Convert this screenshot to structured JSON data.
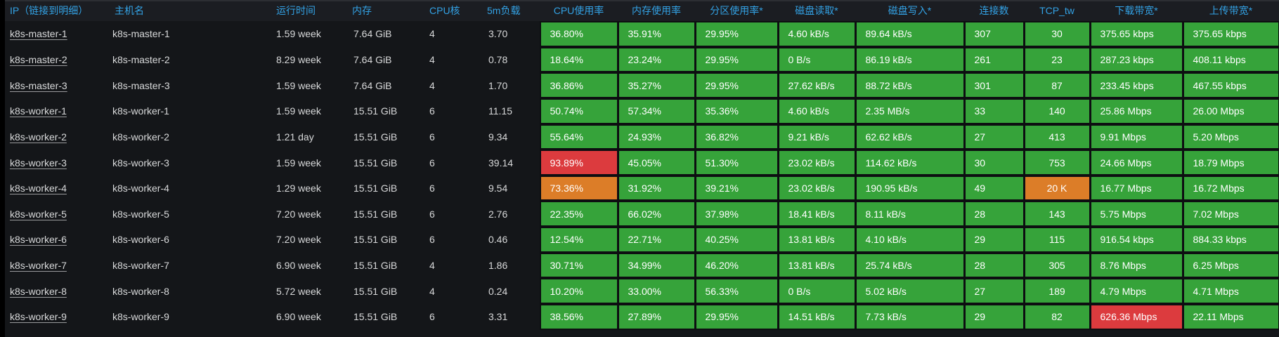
{
  "colors": {
    "green": "#36a33a",
    "orange": "#dc7d28",
    "red": "#dc3b3e",
    "header_text": "#33a2e5",
    "body_text": "#d8d9da",
    "cell_text": "#ffffff"
  },
  "table": {
    "columns": [
      {
        "key": "ip",
        "label": "IP（链接到明细）",
        "type": "link"
      },
      {
        "key": "hostname",
        "label": "主机名"
      },
      {
        "key": "uptime",
        "label": "运行时间"
      },
      {
        "key": "memory",
        "label": "内存"
      },
      {
        "key": "cpu_cores",
        "label": "CPU核"
      },
      {
        "key": "load5m",
        "label": "5m负载"
      },
      {
        "key": "cpu_usage",
        "label": "CPU使用率",
        "colored": true
      },
      {
        "key": "mem_usage",
        "label": "内存使用率",
        "colored": true
      },
      {
        "key": "part_usage",
        "label": "分区使用率*",
        "colored": true
      },
      {
        "key": "disk_read",
        "label": "磁盘读取*",
        "colored": true
      },
      {
        "key": "disk_write",
        "label": "磁盘写入*",
        "colored": true
      },
      {
        "key": "connections",
        "label": "连接数",
        "colored": true
      },
      {
        "key": "tcp_tw",
        "label": "TCP_tw",
        "colored": true,
        "align": "center"
      },
      {
        "key": "download_bw",
        "label": "下载带宽*",
        "colored": true
      },
      {
        "key": "upload_bw",
        "label": "上传带宽*",
        "colored": true
      }
    ],
    "rows": [
      {
        "ip": "k8s-master-1",
        "hostname": "k8s-master-1",
        "uptime": "1.59 week",
        "memory": "7.64 GiB",
        "cpu_cores": "4",
        "load5m": "3.70",
        "cpu_usage": "36.80%",
        "mem_usage": "35.91%",
        "part_usage": "29.95%",
        "disk_read": "4.60 kB/s",
        "disk_write": "89.64 kB/s",
        "connections": "307",
        "tcp_tw": "30",
        "download_bw": "375.65 kbps",
        "upload_bw": "375.65 kbps",
        "cell_colors": {}
      },
      {
        "ip": "k8s-master-2",
        "hostname": "k8s-master-2",
        "uptime": "8.29 week",
        "memory": "7.64 GiB",
        "cpu_cores": "4",
        "load5m": "0.78",
        "cpu_usage": "18.64%",
        "mem_usage": "23.24%",
        "part_usage": "29.95%",
        "disk_read": "0 B/s",
        "disk_write": "86.19 kB/s",
        "connections": "261",
        "tcp_tw": "23",
        "download_bw": "287.23 kbps",
        "upload_bw": "408.11 kbps",
        "cell_colors": {}
      },
      {
        "ip": "k8s-master-3",
        "hostname": "k8s-master-3",
        "uptime": "1.59 week",
        "memory": "7.64 GiB",
        "cpu_cores": "4",
        "load5m": "1.70",
        "cpu_usage": "36.86%",
        "mem_usage": "35.27%",
        "part_usage": "29.95%",
        "disk_read": "27.62 kB/s",
        "disk_write": "88.72 kB/s",
        "connections": "301",
        "tcp_tw": "87",
        "download_bw": "233.45 kbps",
        "upload_bw": "467.55 kbps",
        "cell_colors": {}
      },
      {
        "ip": "k8s-worker-1",
        "hostname": "k8s-worker-1",
        "uptime": "1.59 week",
        "memory": "15.51 GiB",
        "cpu_cores": "6",
        "load5m": "11.15",
        "cpu_usage": "50.74%",
        "mem_usage": "57.34%",
        "part_usage": "35.36%",
        "disk_read": "4.60 kB/s",
        "disk_write": "2.35 MB/s",
        "connections": "33",
        "tcp_tw": "140",
        "download_bw": "25.86 Mbps",
        "upload_bw": "26.00 Mbps",
        "cell_colors": {}
      },
      {
        "ip": "k8s-worker-2",
        "hostname": "k8s-worker-2",
        "uptime": "1.21 day",
        "memory": "15.51 GiB",
        "cpu_cores": "6",
        "load5m": "9.34",
        "cpu_usage": "55.64%",
        "mem_usage": "24.93%",
        "part_usage": "36.82%",
        "disk_read": "9.21 kB/s",
        "disk_write": "62.62 kB/s",
        "connections": "27",
        "tcp_tw": "413",
        "download_bw": "9.91 Mbps",
        "upload_bw": "5.20 Mbps",
        "cell_colors": {}
      },
      {
        "ip": "k8s-worker-3",
        "hostname": "k8s-worker-3",
        "uptime": "1.59 week",
        "memory": "15.51 GiB",
        "cpu_cores": "6",
        "load5m": "39.14",
        "cpu_usage": "93.89%",
        "mem_usage": "45.05%",
        "part_usage": "51.30%",
        "disk_read": "23.02 kB/s",
        "disk_write": "114.62 kB/s",
        "connections": "30",
        "tcp_tw": "753",
        "download_bw": "24.66 Mbps",
        "upload_bw": "18.79 Mbps",
        "cell_colors": {
          "cpu_usage": "red"
        }
      },
      {
        "ip": "k8s-worker-4",
        "hostname": "k8s-worker-4",
        "uptime": "1.29 week",
        "memory": "15.51 GiB",
        "cpu_cores": "6",
        "load5m": "9.54",
        "cpu_usage": "73.36%",
        "mem_usage": "31.92%",
        "part_usage": "39.21%",
        "disk_read": "23.02 kB/s",
        "disk_write": "190.95 kB/s",
        "connections": "49",
        "tcp_tw": "20 K",
        "download_bw": "16.77 Mbps",
        "upload_bw": "16.72 Mbps",
        "cell_colors": {
          "cpu_usage": "orange",
          "tcp_tw": "orange"
        }
      },
      {
        "ip": "k8s-worker-5",
        "hostname": "k8s-worker-5",
        "uptime": "7.20 week",
        "memory": "15.51 GiB",
        "cpu_cores": "6",
        "load5m": "2.76",
        "cpu_usage": "22.35%",
        "mem_usage": "66.02%",
        "part_usage": "37.98%",
        "disk_read": "18.41 kB/s",
        "disk_write": "8.11 kB/s",
        "connections": "28",
        "tcp_tw": "143",
        "download_bw": "5.75 Mbps",
        "upload_bw": "7.02 Mbps",
        "cell_colors": {}
      },
      {
        "ip": "k8s-worker-6",
        "hostname": "k8s-worker-6",
        "uptime": "7.20 week",
        "memory": "15.51 GiB",
        "cpu_cores": "6",
        "load5m": "0.46",
        "cpu_usage": "12.54%",
        "mem_usage": "22.71%",
        "part_usage": "40.25%",
        "disk_read": "13.81 kB/s",
        "disk_write": "4.10 kB/s",
        "connections": "29",
        "tcp_tw": "115",
        "download_bw": "916.54 kbps",
        "upload_bw": "884.33 kbps",
        "cell_colors": {}
      },
      {
        "ip": "k8s-worker-7",
        "hostname": "k8s-worker-7",
        "uptime": "6.90 week",
        "memory": "15.51 GiB",
        "cpu_cores": "4",
        "load5m": "1.86",
        "cpu_usage": "30.71%",
        "mem_usage": "34.99%",
        "part_usage": "46.20%",
        "disk_read": "13.81 kB/s",
        "disk_write": "25.74 kB/s",
        "connections": "28",
        "tcp_tw": "305",
        "download_bw": "8.76 Mbps",
        "upload_bw": "6.25 Mbps",
        "cell_colors": {}
      },
      {
        "ip": "k8s-worker-8",
        "hostname": "k8s-worker-8",
        "uptime": "5.72 week",
        "memory": "15.51 GiB",
        "cpu_cores": "4",
        "load5m": "0.24",
        "cpu_usage": "10.20%",
        "mem_usage": "33.00%",
        "part_usage": "56.33%",
        "disk_read": "0 B/s",
        "disk_write": "5.02 kB/s",
        "connections": "27",
        "tcp_tw": "189",
        "download_bw": "4.79 Mbps",
        "upload_bw": "4.71 Mbps",
        "cell_colors": {}
      },
      {
        "ip": "k8s-worker-9",
        "hostname": "k8s-worker-9",
        "uptime": "6.90 week",
        "memory": "15.51 GiB",
        "cpu_cores": "6",
        "load5m": "3.31",
        "cpu_usage": "38.56%",
        "mem_usage": "27.89%",
        "part_usage": "29.95%",
        "disk_read": "14.51 kB/s",
        "disk_write": "7.73 kB/s",
        "connections": "29",
        "tcp_tw": "82",
        "download_bw": "626.36 Mbps",
        "upload_bw": "22.11 Mbps",
        "cell_colors": {
          "download_bw": "red"
        }
      }
    ]
  }
}
